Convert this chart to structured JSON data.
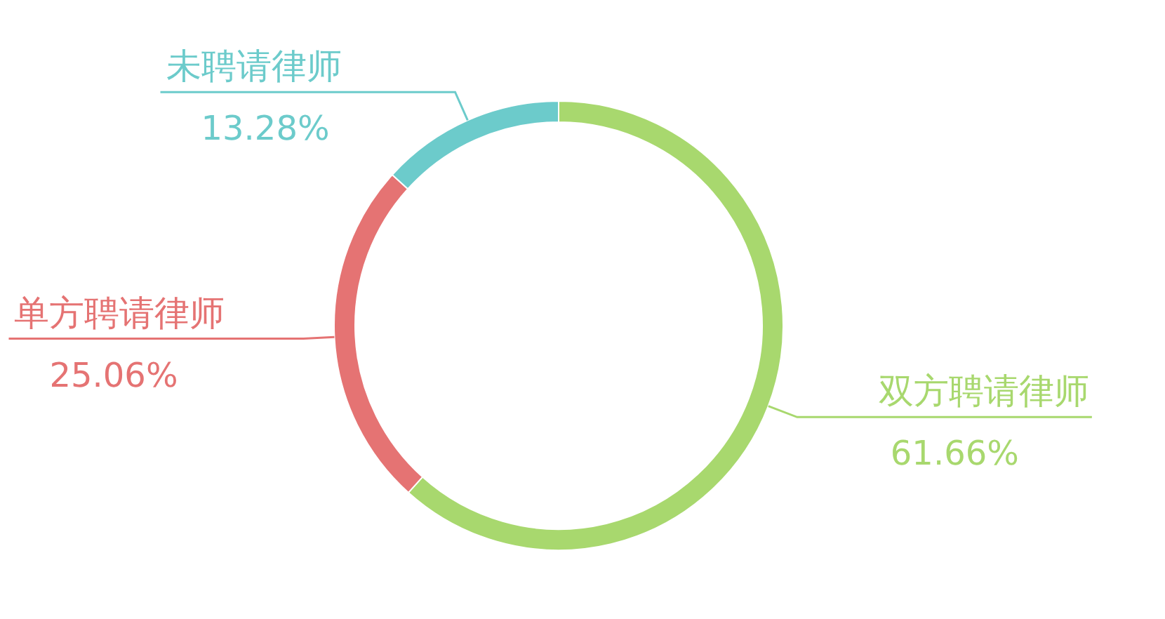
{
  "chart_data": {
    "type": "donut",
    "categories": [
      "双方聘请律师",
      "单方聘请律师",
      "未聘请律师"
    ],
    "values": [
      61.66,
      25.06,
      13.28
    ],
    "colors": [
      "#a8d86e",
      "#e57373",
      "#6ccbcb"
    ],
    "value_labels": [
      "61.66%",
      "25.06%",
      "13.28%"
    ]
  }
}
